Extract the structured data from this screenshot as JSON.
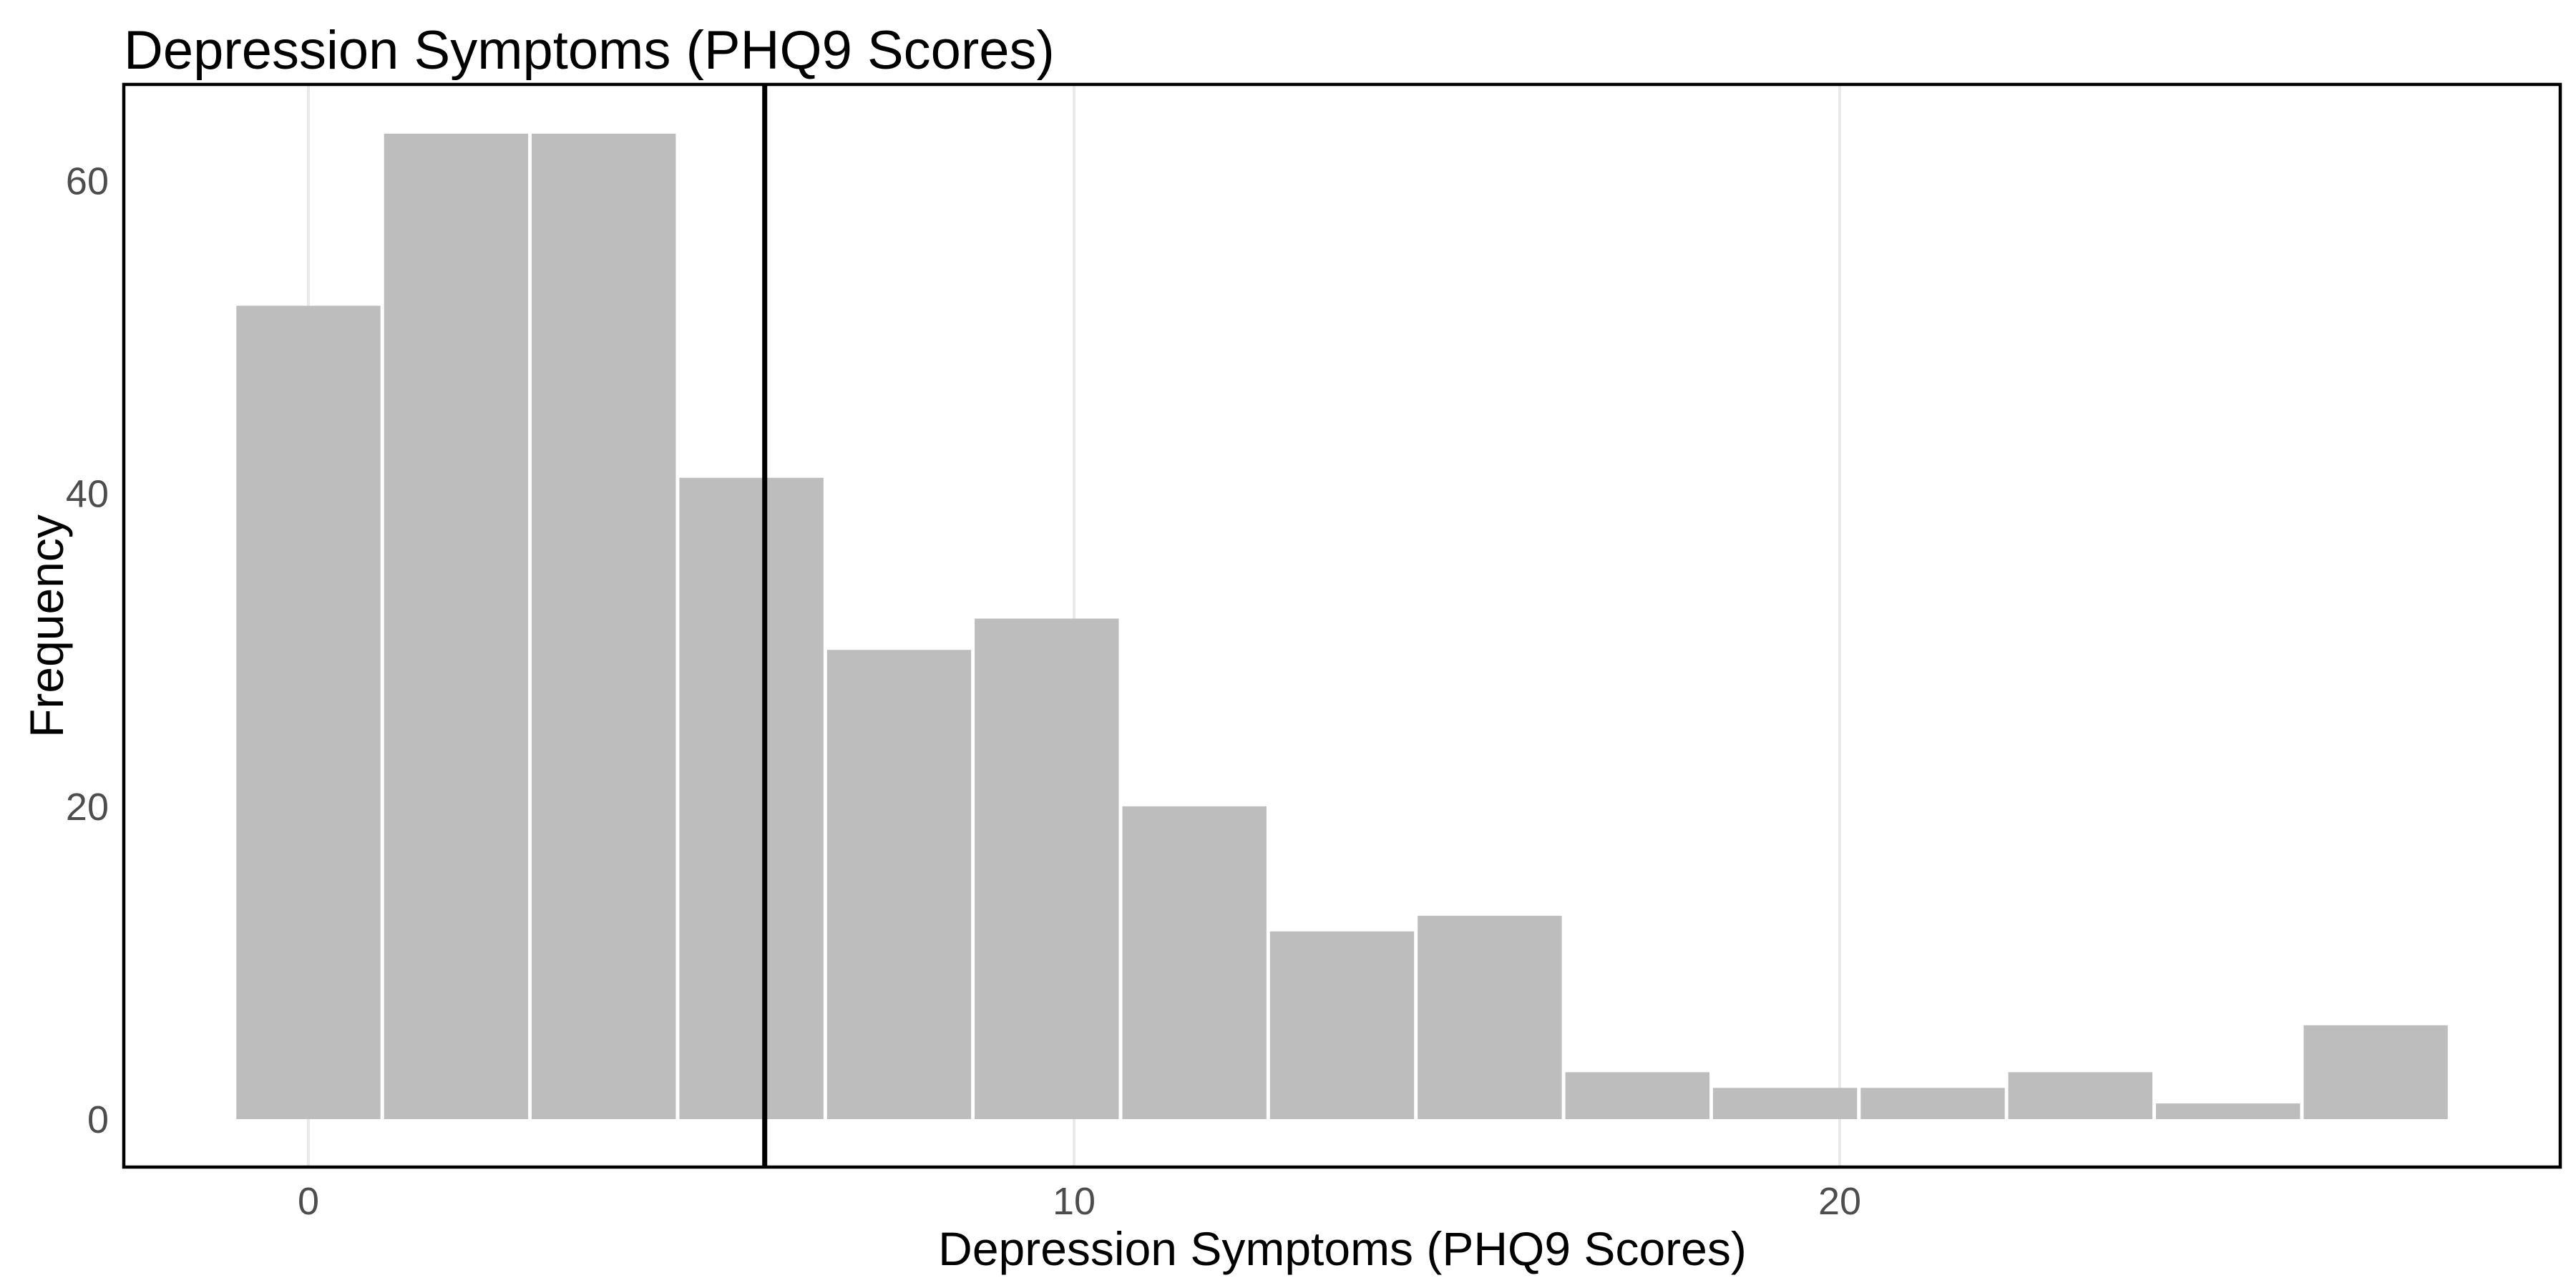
{
  "chart_data": {
    "type": "bar",
    "subtype": "histogram",
    "title": "Depression Symptoms (PHQ9 Scores)",
    "xlabel": "Depression Symptoms (PHQ9 Scores)",
    "ylabel": "Frequency",
    "bins": {
      "count": 15,
      "binwidth": 1.9286,
      "first_edge": -0.9643
    },
    "bin_centers": [
      0,
      1.93,
      3.86,
      5.79,
      7.71,
      9.64,
      11.57,
      13.5,
      15.43,
      17.36,
      19.29,
      21.21,
      23.14,
      25.07,
      27.0
    ],
    "counts": [
      52,
      63,
      63,
      41,
      30,
      32,
      20,
      12,
      13,
      3,
      2,
      2,
      3,
      1,
      6
    ],
    "total_n": 343,
    "vline_x": 5.96,
    "x_ticks": [
      0,
      10,
      20
    ],
    "y_ticks": [
      0,
      20,
      40,
      60
    ],
    "xlim": [
      -2.41,
      29.41
    ],
    "ylim": [
      -3.15,
      66.15
    ],
    "grid": "vertical-major-only",
    "legend": "none",
    "colors": {
      "bar_fill": "#bdbdbd",
      "bar_stroke": "#ffffff",
      "vline": "#000000",
      "panel_border": "#000000",
      "gridline": "#e9e9e9",
      "tick_label": "#4d4d4d",
      "title_text": "#000000",
      "background": "#ffffff"
    }
  }
}
